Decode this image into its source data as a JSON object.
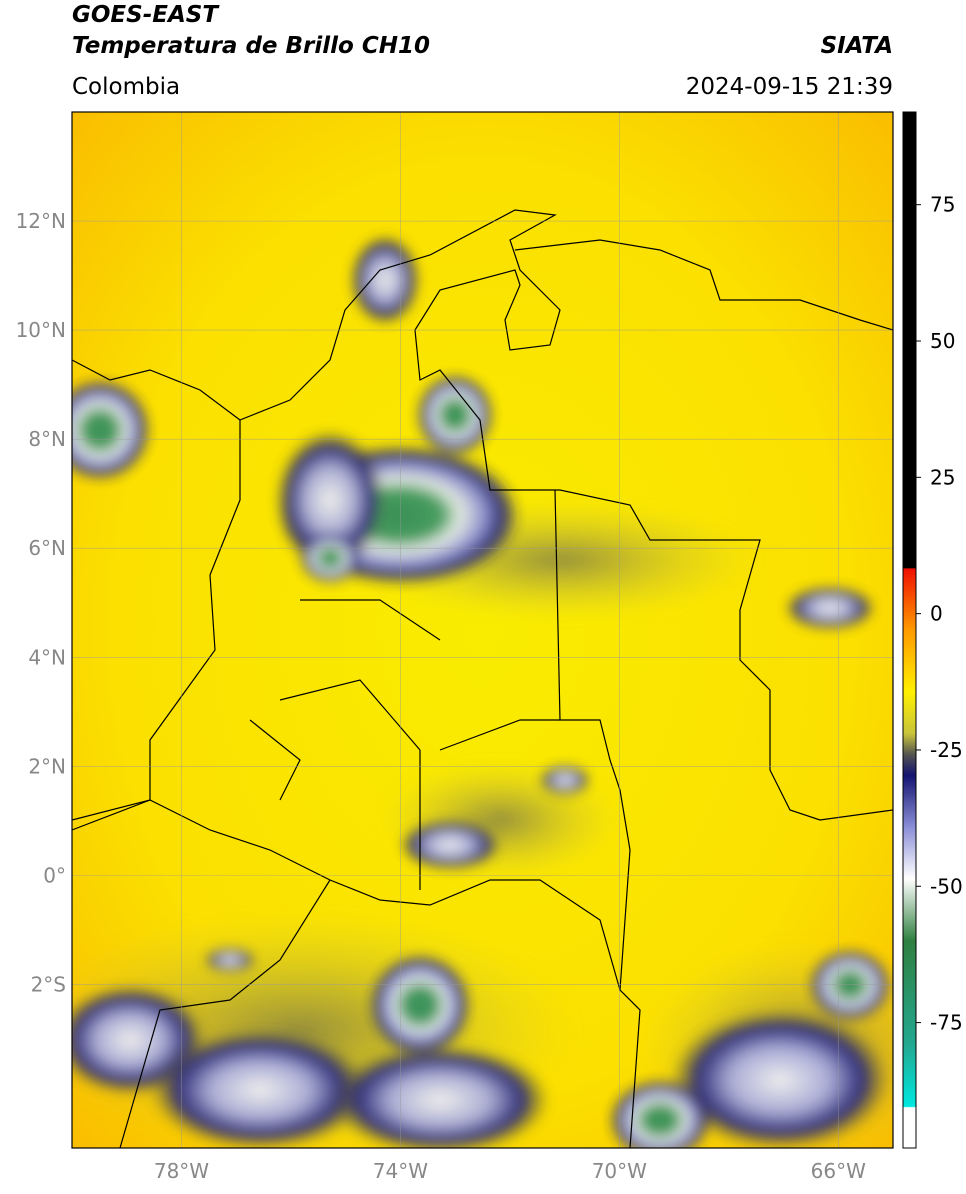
{
  "header": {
    "satellite": "GOES-EAST",
    "product": "Temperatura de Brillo CH10",
    "region": "Colombia",
    "source": "SIATA",
    "datetime": "2024-09-15 21:39"
  },
  "map": {
    "xlim": [
      -80,
      -65
    ],
    "ylim": [
      -5,
      14
    ],
    "lat_ticks": [
      {
        "value": 12,
        "label": "12°N"
      },
      {
        "value": 10,
        "label": "10°N"
      },
      {
        "value": 8,
        "label": "8°N"
      },
      {
        "value": 6,
        "label": "6°N"
      },
      {
        "value": 4,
        "label": "4°N"
      },
      {
        "value": 2,
        "label": "2°N"
      },
      {
        "value": 0,
        "label": "0°"
      },
      {
        "value": -2,
        "label": "2°S"
      }
    ],
    "lon_ticks": [
      {
        "value": -78,
        "label": "78°W"
      },
      {
        "value": -74,
        "label": "74°W"
      },
      {
        "value": -70,
        "label": "70°W"
      },
      {
        "value": -66,
        "label": "66°W"
      }
    ]
  },
  "colorbar": {
    "lim": [
      -98,
      92
    ],
    "ticks": [
      75,
      50,
      25,
      0,
      -25,
      -50,
      -75
    ]
  }
}
